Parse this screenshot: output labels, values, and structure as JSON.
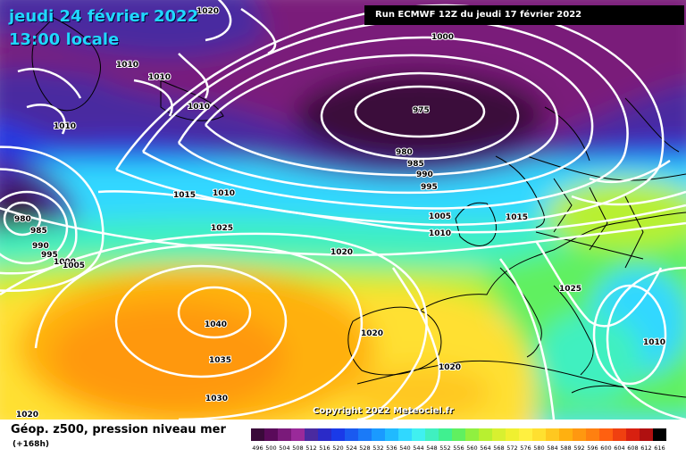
{
  "header": {
    "date": "jeudi 24 février 2022",
    "time": "13:00 locale",
    "run": "Run ECMWF 12Z du jeudi 17 février 2022"
  },
  "footer": {
    "parameter": "Géop. z500, pression niveau mer",
    "lead": "(+168h)",
    "copyright": "Copyright 2022 Meteociel.fr"
  },
  "isobar_labels": [
    "1020",
    "1000",
    "1010",
    "1010",
    "1010",
    "1010",
    "975",
    "980",
    "985",
    "990",
    "995",
    "1005",
    "1010",
    "1015",
    "1015",
    "1010",
    "1025",
    "1020",
    "980",
    "985",
    "990",
    "995",
    "1000",
    "1005",
    "1040",
    "1035",
    "1030",
    "1020",
    "1020",
    "1025",
    "1010",
    "1020"
  ],
  "color_scale": {
    "labels": [
      "496",
      "500",
      "504",
      "508",
      "512",
      "516",
      "520",
      "524",
      "528",
      "532",
      "536",
      "540",
      "544",
      "548",
      "552",
      "556",
      "560",
      "564",
      "568",
      "572",
      "576",
      "580",
      "584",
      "588",
      "592",
      "596",
      "600",
      "604",
      "608",
      "612",
      "616"
    ],
    "colors": [
      "#3a0a3a",
      "#5a0a5a",
      "#7a1a7a",
      "#9a2a9a",
      "#4a2aa0",
      "#2a2ac8",
      "#1a3ae8",
      "#1a5af0",
      "#1a7af8",
      "#1a9aff",
      "#20baff",
      "#30d8ff",
      "#40f0f0",
      "#40f0c0",
      "#40f090",
      "#60f060",
      "#90f040",
      "#b8f030",
      "#d8f030",
      "#f0f030",
      "#fff040",
      "#ffe030",
      "#ffc820",
      "#ffb010",
      "#ff9810",
      "#ff8010",
      "#ff6010",
      "#f04010",
      "#d82010",
      "#b01010",
      "#000000"
    ]
  }
}
